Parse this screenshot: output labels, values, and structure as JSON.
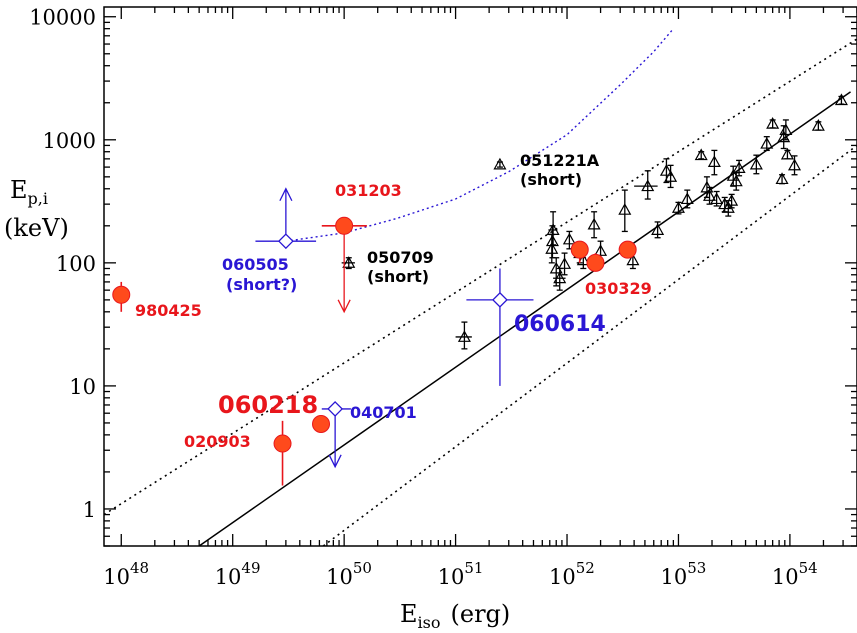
{
  "chart_data": {
    "type": "scatter",
    "title": "",
    "xlabel": "E",
    "xlabel_sub": "iso",
    "xlabel_unit": "(erg)",
    "ylabel": "E",
    "ylabel_sub": "p,i",
    "ylabel_unit": "(keV)",
    "xscale": "log",
    "yscale": "log",
    "xlim": [
      7e+47,
      4e+54
    ],
    "ylim": [
      0.5,
      12000
    ],
    "x_ticks": [
      {
        "value": 1e+48,
        "base": "10",
        "exp": "48"
      },
      {
        "value": 1e+49,
        "base": "10",
        "exp": "49"
      },
      {
        "value": 1e+50,
        "base": "10",
        "exp": "50"
      },
      {
        "value": 1e+51,
        "base": "10",
        "exp": "51"
      },
      {
        "value": 1e+52,
        "base": "10",
        "exp": "52"
      },
      {
        "value": 1e+53,
        "base": "10",
        "exp": "53"
      },
      {
        "value": 1e+54,
        "base": "10",
        "exp": "54"
      }
    ],
    "y_ticks": [
      {
        "value": 1,
        "label": "1"
      },
      {
        "value": 10,
        "label": "10"
      },
      {
        "value": 100,
        "label": "100"
      },
      {
        "value": 1000,
        "label": "1000"
      },
      {
        "value": 10000,
        "label": "10000"
      }
    ],
    "colors": {
      "red": "#e8161c",
      "fill": "#ff4a1c",
      "blue": "#2a16d4",
      "black": "#000000"
    },
    "fit_line": {
      "x": [
        5e+48,
        3.5e+54
      ],
      "y": [
        0.5,
        2450
      ]
    },
    "band_lower": {
      "x": [
        6.5e+49,
        4e+54
      ],
      "y": [
        0.5,
        900
      ]
    },
    "band_upper": {
      "x": [
        7e+47,
        4e+54
      ],
      "y": [
        0.9,
        6600
      ]
    },
    "blue_curve": [
      [
        3e+49,
        150
      ],
      [
        1e+50,
        175
      ],
      [
        3e+50,
        230
      ],
      [
        1e+51,
        330
      ],
      [
        3e+51,
        550
      ],
      [
        1e+52,
        1100
      ],
      [
        3e+52,
        2800
      ],
      [
        6e+52,
        5200
      ],
      [
        9e+52,
        8000
      ]
    ],
    "black_points": [
      {
        "x": 1.2e+51,
        "y": 25,
        "yerr": [
          20,
          33
        ],
        "xerr": [
          1e+51,
          1.4e+51
        ]
      },
      {
        "x": 7.5e+51,
        "y": 185,
        "yerr": [
          140,
          260
        ],
        "xerr": [
          6.8e+51,
          8.2e+51
        ]
      },
      {
        "x": 7.4e+51,
        "y": 150,
        "yerr": [
          110,
          200
        ]
      },
      {
        "x": 7.3e+51,
        "y": 130,
        "yerr": [
          100,
          170
        ]
      },
      {
        "x": 8e+51,
        "y": 90,
        "yerr": [
          65,
          110
        ]
      },
      {
        "x": 8.6e+51,
        "y": 75,
        "yerr": [
          60,
          90
        ],
        "xerr": [
          7.5e+51,
          9.7e+51
        ]
      },
      {
        "x": 9.5e+51,
        "y": 98,
        "yerr": [
          80,
          120
        ]
      },
      {
        "x": 1.05e+52,
        "y": 155,
        "yerr": [
          130,
          180
        ]
      },
      {
        "x": 1.3e+52,
        "y": 120,
        "yerr": [
          100,
          140
        ]
      },
      {
        "x": 1.4e+52,
        "y": 105,
        "yerr": [
          90,
          125
        ]
      },
      {
        "x": 1.75e+52,
        "y": 205,
        "yerr": [
          160,
          260
        ]
      },
      {
        "x": 2e+52,
        "y": 125,
        "yerr": [
          105,
          150
        ]
      },
      {
        "x": 3.3e+52,
        "y": 270,
        "yerr": [
          180,
          390
        ]
      },
      {
        "x": 3.9e+52,
        "y": 105,
        "yerr": [
          90,
          125
        ]
      },
      {
        "x": 5.3e+52,
        "y": 420,
        "yerr": [
          330,
          560
        ],
        "xerr": [
          4e+52,
          6.5e+52
        ]
      },
      {
        "x": 6.5e+52,
        "y": 185,
        "yerr": [
          160,
          215
        ]
      },
      {
        "x": 7.8e+52,
        "y": 560,
        "yerr": [
          450,
          700
        ]
      },
      {
        "x": 8.5e+52,
        "y": 500,
        "yerr": [
          410,
          620
        ]
      },
      {
        "x": 1e+53,
        "y": 280,
        "yerr": [
          250,
          310
        ]
      },
      {
        "x": 1.2e+53,
        "y": 330,
        "yerr": [
          280,
          390
        ]
      },
      {
        "x": 1.6e+53,
        "y": 750,
        "yerr": [
          700,
          800
        ]
      },
      {
        "x": 1.8e+53,
        "y": 410,
        "yerr": [
          340,
          500
        ]
      },
      {
        "x": 1.9e+53,
        "y": 350,
        "yerr": [
          300,
          410
        ]
      },
      {
        "x": 2.1e+53,
        "y": 660,
        "yerr": [
          520,
          820
        ]
      },
      {
        "x": 2.2e+53,
        "y": 330,
        "yerr": [
          290,
          380
        ]
      },
      {
        "x": 2.6e+53,
        "y": 300,
        "yerr": [
          260,
          340
        ]
      },
      {
        "x": 2.8e+53,
        "y": 280,
        "yerr": [
          240,
          320
        ]
      },
      {
        "x": 3e+53,
        "y": 320,
        "yerr": [
          280,
          360
        ]
      },
      {
        "x": 3.1e+53,
        "y": 510,
        "yerr": [
          420,
          610
        ]
      },
      {
        "x": 3.3e+53,
        "y": 460,
        "yerr": [
          390,
          540
        ]
      },
      {
        "x": 3.5e+53,
        "y": 590,
        "yerr": [
          510,
          680
        ]
      },
      {
        "x": 5e+53,
        "y": 630,
        "yerr": [
          530,
          750
        ]
      },
      {
        "x": 6.2e+53,
        "y": 930,
        "yerr": [
          820,
          1060
        ]
      },
      {
        "x": 7e+53,
        "y": 1350,
        "yerr": [
          1250,
          1450
        ]
      },
      {
        "x": 8.5e+53,
        "y": 480,
        "yerr": [
          440,
          520
        ]
      },
      {
        "x": 8.8e+53,
        "y": 1050,
        "yerr": [
          850,
          1300
        ]
      },
      {
        "x": 9.2e+53,
        "y": 1200,
        "yerr": [
          1000,
          1450
        ]
      },
      {
        "x": 9.5e+53,
        "y": 760,
        "yerr": [
          700,
          820
        ]
      },
      {
        "x": 1.1e+54,
        "y": 620,
        "yerr": [
          520,
          740
        ]
      },
      {
        "x": 1.8e+54,
        "y": 1300,
        "yerr": [
          1200,
          1400
        ]
      },
      {
        "x": 2.9e+54,
        "y": 2100,
        "yerr": [
          1950,
          2250
        ]
      }
    ],
    "named_black_points": [
      {
        "label": "051221A",
        "sublabel": "(short)",
        "x": 2.5e+51,
        "y": 630,
        "yerr": [
          600,
          660
        ]
      },
      {
        "label": "050709",
        "sublabel": "(short)",
        "x": 1.1e+50,
        "y": 100,
        "yerr": [
          90,
          110
        ],
        "xerr": [
          9.5e+49,
          1.25e+50
        ]
      }
    ],
    "red_points": [
      {
        "label": "980425",
        "x": 1e+48,
        "y": 55,
        "yerr": [
          40,
          70
        ]
      },
      {
        "label": "031203",
        "x": 1e+50,
        "y": 200,
        "upper_limit": true,
        "limit_to": 40,
        "xerr": [
          6.3e+49,
          1.6e+50
        ]
      },
      {
        "label": "060218",
        "x": 6.2e+49,
        "y": 4.9
      },
      {
        "label": "020903",
        "x": 2.8e+49,
        "y": 3.4,
        "yerr": [
          1.55,
          5.2
        ]
      },
      {
        "label": "030329",
        "x": 1.8e+52,
        "y": 100,
        "yerr": [
          85,
          120
        ]
      },
      {
        "x": 1.3e+52,
        "y": 128,
        "yerr": [
          100,
          150
        ]
      },
      {
        "x": 3.5e+52,
        "y": 128,
        "yerr": [
          110,
          145
        ]
      }
    ],
    "blue_points": [
      {
        "label": "060505",
        "sublabel": "(short?)",
        "x": 3e+49,
        "y": 150,
        "yerr": [
          150,
          400
        ],
        "xerr": [
          1.6e+49,
          5.6e+49
        ],
        "upper_arrow": true
      },
      {
        "label": "040701",
        "x": 8.3e+49,
        "y": 6.5,
        "upper_limit": true,
        "limit_to": 2.2,
        "xerr": [
          6.3e+49,
          1.15e+50
        ]
      },
      {
        "label": "060614",
        "x": 2.5e+51,
        "y": 50,
        "yerr": [
          10,
          90
        ],
        "xerr": [
          1.25e+51,
          5e+51
        ]
      }
    ]
  }
}
